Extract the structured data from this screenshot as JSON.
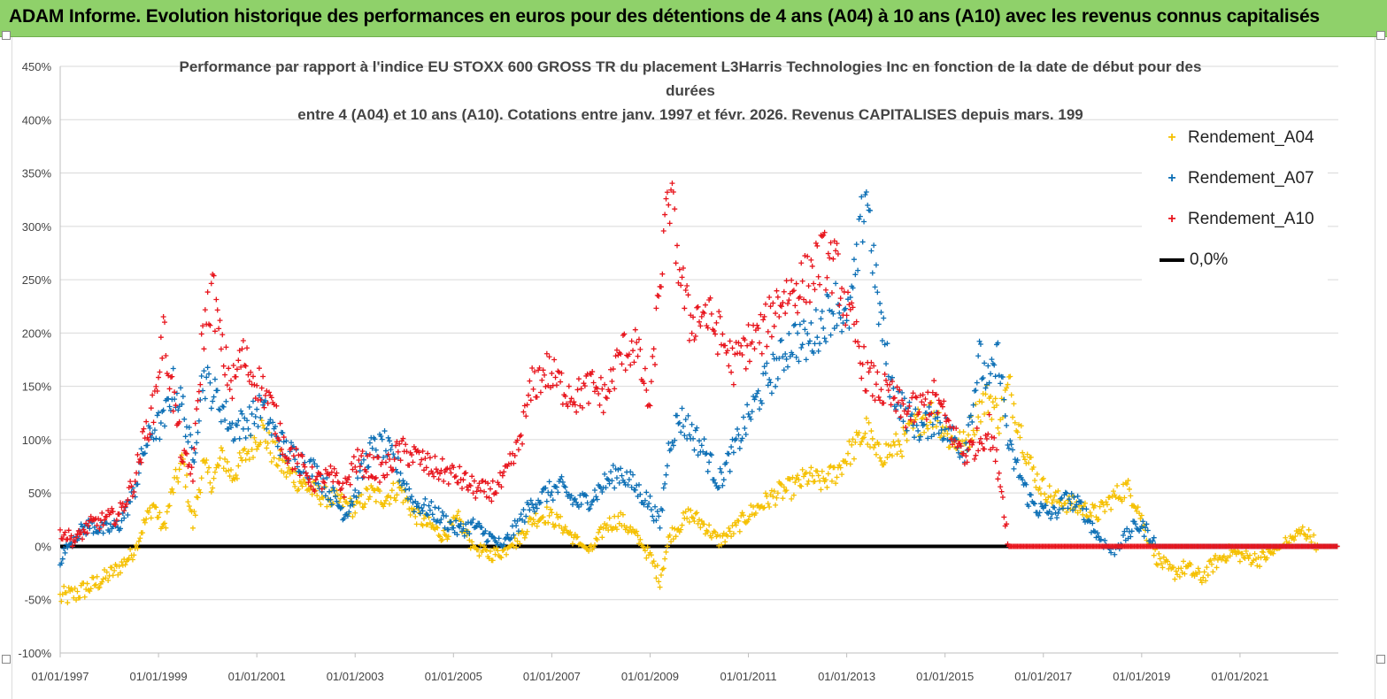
{
  "banner": {
    "title": "ADAM Informe. Evolution historique des performances en euros pour des détentions de 4 ans (A04) à 10 ans (A10) avec les revenus connus capitalisés"
  },
  "colors": {
    "a04": "#f5c000",
    "a07": "#0c6fb5",
    "a10": "#e8141c",
    "zero": "#000000",
    "grid": "#d9d9d9"
  },
  "chart_data": {
    "type": "scatter",
    "title_lines": [
      "Performance par rapport à l'indice EU STOXX 600 GROSS TR  du placement L3Harris Technologies Inc en fonction de la date de début pour des",
      "durées",
      "entre 4 (A04) et 10 ans (A10). Cotations entre janv. 1997 et févr. 2026. Revenus CAPITALISES depuis mars. 199"
    ],
    "y_ticks": [
      "450%",
      "400%",
      "350%",
      "300%",
      "250%",
      "200%",
      "150%",
      "100%",
      "50%",
      "0%",
      "-50%",
      "-100%"
    ],
    "x_ticks": [
      "01/01/1997",
      "01/01/1999",
      "01/01/2001",
      "01/01/2003",
      "01/01/2005",
      "01/01/2007",
      "01/01/2009",
      "01/01/2011",
      "01/01/2013",
      "01/01/2015",
      "01/01/2017",
      "01/01/2019",
      "01/01/2021"
    ],
    "x_range": [
      1997.0,
      2023.0
    ],
    "ylim": [
      -100,
      450
    ],
    "series": [
      {
        "name": "Rendement_A04",
        "points": [
          [
            1997.0,
            -48
          ],
          [
            1997.3,
            -45
          ],
          [
            1997.6,
            -38
          ],
          [
            1997.9,
            -30
          ],
          [
            1998.2,
            -20
          ],
          [
            1998.5,
            -5
          ],
          [
            1998.7,
            20
          ],
          [
            1998.9,
            40
          ],
          [
            1999.1,
            15
          ],
          [
            1999.3,
            55
          ],
          [
            1999.5,
            80
          ],
          [
            1999.7,
            20
          ],
          [
            1999.9,
            75
          ],
          [
            2000.1,
            60
          ],
          [
            2000.3,
            85
          ],
          [
            2000.5,
            65
          ],
          [
            2000.7,
            80
          ],
          [
            2000.9,
            95
          ],
          [
            2001.1,
            110
          ],
          [
            2001.3,
            90
          ],
          [
            2001.6,
            70
          ],
          [
            2001.9,
            60
          ],
          [
            2002.2,
            50
          ],
          [
            2002.5,
            45
          ],
          [
            2002.8,
            40
          ],
          [
            2003.0,
            35
          ],
          [
            2003.3,
            50
          ],
          [
            2003.6,
            45
          ],
          [
            2003.9,
            55
          ],
          [
            2004.2,
            30
          ],
          [
            2004.5,
            20
          ],
          [
            2004.8,
            10
          ],
          [
            2005.1,
            25
          ],
          [
            2005.4,
            0
          ],
          [
            2005.7,
            -8
          ],
          [
            2006.0,
            -5
          ],
          [
            2006.3,
            5
          ],
          [
            2006.6,
            25
          ],
          [
            2006.9,
            30
          ],
          [
            2007.2,
            20
          ],
          [
            2007.5,
            5
          ],
          [
            2007.8,
            -5
          ],
          [
            2008.1,
            20
          ],
          [
            2008.4,
            25
          ],
          [
            2008.7,
            10
          ],
          [
            2009.0,
            -10
          ],
          [
            2009.2,
            -30
          ],
          [
            2009.4,
            10
          ],
          [
            2009.6,
            20
          ],
          [
            2009.8,
            30
          ],
          [
            2010.1,
            20
          ],
          [
            2010.4,
            5
          ],
          [
            2010.7,
            15
          ],
          [
            2011.0,
            30
          ],
          [
            2011.3,
            40
          ],
          [
            2011.6,
            50
          ],
          [
            2011.9,
            55
          ],
          [
            2012.2,
            65
          ],
          [
            2012.5,
            60
          ],
          [
            2012.8,
            70
          ],
          [
            2013.0,
            85
          ],
          [
            2013.2,
            95
          ],
          [
            2013.4,
            110
          ],
          [
            2013.6,
            85
          ],
          [
            2013.9,
            90
          ],
          [
            2014.2,
            100
          ],
          [
            2014.5,
            120
          ],
          [
            2014.8,
            125
          ],
          [
            2015.1,
            100
          ],
          [
            2015.4,
            95
          ],
          [
            2015.7,
            130
          ],
          [
            2015.9,
            140
          ],
          [
            2016.1,
            120
          ],
          [
            2016.3,
            150
          ],
          [
            2016.5,
            115
          ],
          [
            2016.7,
            80
          ],
          [
            2016.9,
            60
          ],
          [
            2017.2,
            45
          ],
          [
            2017.5,
            40
          ],
          [
            2017.8,
            35
          ],
          [
            2018.1,
            30
          ],
          [
            2018.4,
            45
          ],
          [
            2018.7,
            55
          ],
          [
            2018.9,
            40
          ],
          [
            2019.1,
            10
          ],
          [
            2019.3,
            -10
          ],
          [
            2019.6,
            -25
          ],
          [
            2019.9,
            -20
          ],
          [
            2020.2,
            -30
          ],
          [
            2020.5,
            -15
          ],
          [
            2020.8,
            -5
          ],
          [
            2021.1,
            -10
          ],
          [
            2021.4,
            -12
          ],
          [
            2021.7,
            -5
          ],
          [
            2022.0,
            5
          ],
          [
            2022.3,
            15
          ],
          [
            2022.6,
            0
          ],
          [
            2023.0,
            0
          ]
        ]
      },
      {
        "name": "Rendement_A07",
        "points": [
          [
            1997.0,
            -12
          ],
          [
            1997.3,
            10
          ],
          [
            1997.6,
            20
          ],
          [
            1997.9,
            15
          ],
          [
            1998.2,
            20
          ],
          [
            1998.5,
            50
          ],
          [
            1998.7,
            90
          ],
          [
            1998.9,
            110
          ],
          [
            1999.1,
            115
          ],
          [
            1999.3,
            150
          ],
          [
            1999.5,
            130
          ],
          [
            1999.7,
            80
          ],
          [
            1999.9,
            160
          ],
          [
            2000.1,
            145
          ],
          [
            2000.3,
            130
          ],
          [
            2000.5,
            110
          ],
          [
            2000.7,
            115
          ],
          [
            2000.9,
            120
          ],
          [
            2001.1,
            130
          ],
          [
            2001.3,
            110
          ],
          [
            2001.6,
            90
          ],
          [
            2001.9,
            80
          ],
          [
            2002.2,
            70
          ],
          [
            2002.5,
            50
          ],
          [
            2002.8,
            30
          ],
          [
            2003.0,
            50
          ],
          [
            2003.3,
            90
          ],
          [
            2003.6,
            95
          ],
          [
            2003.9,
            70
          ],
          [
            2004.2,
            40
          ],
          [
            2004.5,
            35
          ],
          [
            2004.8,
            25
          ],
          [
            2005.1,
            15
          ],
          [
            2005.4,
            20
          ],
          [
            2005.7,
            10
          ],
          [
            2006.0,
            0
          ],
          [
            2006.3,
            20
          ],
          [
            2006.6,
            40
          ],
          [
            2006.9,
            50
          ],
          [
            2007.2,
            55
          ],
          [
            2007.5,
            40
          ],
          [
            2007.8,
            45
          ],
          [
            2008.1,
            60
          ],
          [
            2008.4,
            70
          ],
          [
            2008.7,
            55
          ],
          [
            2009.0,
            40
          ],
          [
            2009.2,
            20
          ],
          [
            2009.4,
            100
          ],
          [
            2009.6,
            120
          ],
          [
            2009.8,
            110
          ],
          [
            2010.1,
            90
          ],
          [
            2010.4,
            60
          ],
          [
            2010.7,
            90
          ],
          [
            2011.0,
            120
          ],
          [
            2011.3,
            150
          ],
          [
            2011.6,
            170
          ],
          [
            2011.9,
            195
          ],
          [
            2012.2,
            190
          ],
          [
            2012.5,
            210
          ],
          [
            2012.8,
            230
          ],
          [
            2013.0,
            205
          ],
          [
            2013.2,
            260
          ],
          [
            2013.4,
            340
          ],
          [
            2013.6,
            240
          ],
          [
            2013.9,
            150
          ],
          [
            2014.2,
            125
          ],
          [
            2014.5,
            110
          ],
          [
            2014.8,
            120
          ],
          [
            2015.1,
            105
          ],
          [
            2015.4,
            90
          ],
          [
            2015.7,
            175
          ],
          [
            2015.9,
            150
          ],
          [
            2016.1,
            180
          ],
          [
            2016.3,
            90
          ],
          [
            2016.5,
            70
          ],
          [
            2016.7,
            45
          ],
          [
            2016.9,
            35
          ],
          [
            2017.2,
            30
          ],
          [
            2017.5,
            45
          ],
          [
            2017.8,
            35
          ],
          [
            2018.1,
            10
          ],
          [
            2018.4,
            -5
          ],
          [
            2018.7,
            10
          ],
          [
            2018.9,
            20
          ],
          [
            2019.1,
            15
          ],
          [
            2019.3,
            0
          ],
          [
            2019.6,
            0
          ],
          [
            2020.0,
            0
          ],
          [
            2020.5,
            0
          ],
          [
            2021.0,
            0
          ],
          [
            2021.5,
            0
          ],
          [
            2022.0,
            0
          ],
          [
            2022.5,
            0
          ],
          [
            2023.0,
            0
          ]
        ]
      },
      {
        "name": "Rendement_A10",
        "points": [
          [
            1997.0,
            15
          ],
          [
            1997.3,
            5
          ],
          [
            1997.6,
            20
          ],
          [
            1997.9,
            25
          ],
          [
            1998.2,
            30
          ],
          [
            1998.5,
            60
          ],
          [
            1998.7,
            100
          ],
          [
            1998.9,
            130
          ],
          [
            1999.1,
            200
          ],
          [
            1999.3,
            140
          ],
          [
            1999.5,
            80
          ],
          [
            1999.7,
            70
          ],
          [
            1999.9,
            200
          ],
          [
            2000.1,
            240
          ],
          [
            2000.3,
            180
          ],
          [
            2000.5,
            150
          ],
          [
            2000.7,
            180
          ],
          [
            2000.9,
            160
          ],
          [
            2001.1,
            150
          ],
          [
            2001.3,
            130
          ],
          [
            2001.6,
            90
          ],
          [
            2001.9,
            75
          ],
          [
            2002.2,
            60
          ],
          [
            2002.5,
            65
          ],
          [
            2002.8,
            55
          ],
          [
            2003.0,
            80
          ],
          [
            2003.3,
            75
          ],
          [
            2003.6,
            70
          ],
          [
            2003.9,
            90
          ],
          [
            2004.2,
            85
          ],
          [
            2004.5,
            75
          ],
          [
            2004.8,
            70
          ],
          [
            2005.1,
            65
          ],
          [
            2005.4,
            55
          ],
          [
            2005.7,
            50
          ],
          [
            2006.0,
            60
          ],
          [
            2006.3,
            90
          ],
          [
            2006.6,
            150
          ],
          [
            2006.9,
            165
          ],
          [
            2007.2,
            150
          ],
          [
            2007.5,
            140
          ],
          [
            2007.8,
            150
          ],
          [
            2008.1,
            140
          ],
          [
            2008.4,
            180
          ],
          [
            2008.7,
            190
          ],
          [
            2009.0,
            130
          ],
          [
            2009.2,
            250
          ],
          [
            2009.4,
            330
          ],
          [
            2009.6,
            260
          ],
          [
            2009.8,
            210
          ],
          [
            2010.1,
            220
          ],
          [
            2010.4,
            200
          ],
          [
            2010.7,
            170
          ],
          [
            2011.0,
            190
          ],
          [
            2011.3,
            200
          ],
          [
            2011.6,
            230
          ],
          [
            2011.9,
            240
          ],
          [
            2012.2,
            250
          ],
          [
            2012.5,
            270
          ],
          [
            2012.8,
            260
          ],
          [
            2013.0,
            220
          ],
          [
            2013.2,
            195
          ],
          [
            2013.4,
            160
          ],
          [
            2013.6,
            150
          ],
          [
            2013.9,
            140
          ],
          [
            2014.2,
            125
          ],
          [
            2014.5,
            130
          ],
          [
            2014.8,
            140
          ],
          [
            2015.1,
            110
          ],
          [
            2015.4,
            85
          ],
          [
            2015.7,
            100
          ],
          [
            2015.9,
            110
          ],
          [
            2016.1,
            70
          ],
          [
            2016.3,
            0
          ],
          [
            2016.8,
            0
          ],
          [
            2017.5,
            0
          ],
          [
            2018.5,
            0
          ],
          [
            2019.5,
            0
          ],
          [
            2020.5,
            0
          ],
          [
            2021.5,
            0
          ],
          [
            2022.5,
            0
          ],
          [
            2023.0,
            0
          ]
        ]
      },
      {
        "name": "0,0%",
        "points": [
          [
            1997.0,
            0
          ],
          [
            2016.3,
            0
          ]
        ]
      }
    ]
  }
}
